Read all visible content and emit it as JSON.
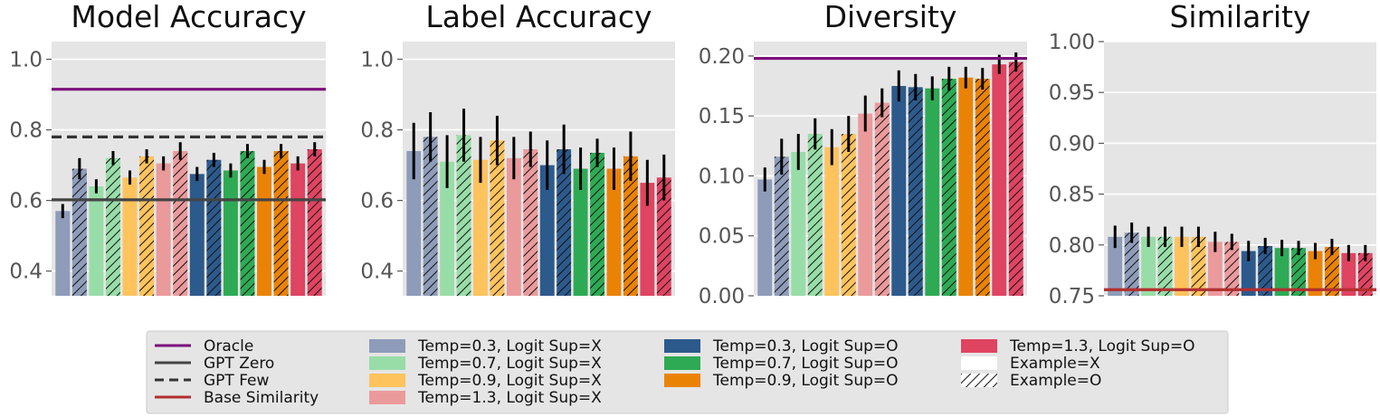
{
  "series_styles": [
    {
      "name": "Temp=0.3, Logit Sup=X",
      "color": "#8e9cba",
      "hatch": false
    },
    {
      "name": "Temp=0.3, Logit Sup=X",
      "color": "#8e9cba",
      "hatch": true
    },
    {
      "name": "Temp=0.7, Logit Sup=X",
      "color": "#98dda8",
      "hatch": false
    },
    {
      "name": "Temp=0.7, Logit Sup=X",
      "color": "#98dda8",
      "hatch": true
    },
    {
      "name": "Temp=0.9, Logit Sup=X",
      "color": "#fec35c",
      "hatch": false
    },
    {
      "name": "Temp=0.9, Logit Sup=X",
      "color": "#fec35c",
      "hatch": true
    },
    {
      "name": "Temp=1.3, Logit Sup=X",
      "color": "#eb9a9c",
      "hatch": false
    },
    {
      "name": "Temp=1.3, Logit Sup=X",
      "color": "#eb9a9c",
      "hatch": true
    },
    {
      "name": "Temp=0.3, Logit Sup=O",
      "color": "#2d5a8c",
      "hatch": false
    },
    {
      "name": "Temp=0.3, Logit Sup=O",
      "color": "#2d5a8c",
      "hatch": true
    },
    {
      "name": "Temp=0.7, Logit Sup=O",
      "color": "#2eaa55",
      "hatch": false
    },
    {
      "name": "Temp=0.7, Logit Sup=O",
      "color": "#2eaa55",
      "hatch": true
    },
    {
      "name": "Temp=0.9, Logit Sup=O",
      "color": "#ea8305",
      "hatch": false
    },
    {
      "name": "Temp=0.9, Logit Sup=O",
      "color": "#ea8305",
      "hatch": true
    },
    {
      "name": "Temp=1.3, Logit Sup=O",
      "color": "#df4461",
      "hatch": false
    },
    {
      "name": "Temp=1.3, Logit Sup=O",
      "color": "#df4461",
      "hatch": true
    }
  ],
  "chart_data": [
    {
      "type": "bar",
      "title": "Model Accuracy",
      "ylim": [
        0.33,
        1.05
      ],
      "yticks": [
        0.4,
        0.6,
        0.8,
        1.0
      ],
      "ytick_labels": [
        "0.4",
        "0.6",
        "0.8",
        "1.0"
      ],
      "values": [
        0.57,
        0.69,
        0.64,
        0.72,
        0.665,
        0.725,
        0.705,
        0.74,
        0.675,
        0.715,
        0.685,
        0.74,
        0.695,
        0.74,
        0.705,
        0.745
      ],
      "errors": [
        0.02,
        0.03,
        0.02,
        0.02,
        0.02,
        0.02,
        0.02,
        0.025,
        0.02,
        0.02,
        0.02,
        0.02,
        0.02,
        0.02,
        0.02,
        0.02
      ],
      "hlines": [
        {
          "name": "Oracle",
          "y": 0.915,
          "color": "#7b0d7b",
          "dash": false
        },
        {
          "name": "GPT Few",
          "y": 0.78,
          "color": "#333333",
          "dash": true
        },
        {
          "name": "GPT Zero",
          "y": 0.602,
          "color": "#444444",
          "dash": false
        }
      ]
    },
    {
      "type": "bar",
      "title": "Label Accuracy",
      "ylim": [
        0.33,
        1.05
      ],
      "yticks": [
        0.4,
        0.6,
        0.8,
        1.0
      ],
      "ytick_labels": [
        "0.4",
        "0.6",
        "0.8",
        "1.0"
      ],
      "values": [
        0.74,
        0.78,
        0.71,
        0.785,
        0.715,
        0.77,
        0.72,
        0.745,
        0.7,
        0.745,
        0.69,
        0.735,
        0.69,
        0.725,
        0.65,
        0.665
      ],
      "errors": [
        0.08,
        0.07,
        0.075,
        0.075,
        0.065,
        0.07,
        0.06,
        0.05,
        0.07,
        0.07,
        0.06,
        0.04,
        0.06,
        0.07,
        0.065,
        0.065
      ],
      "hlines": []
    },
    {
      "type": "bar",
      "title": "Diversity",
      "ylim": [
        0.0,
        0.212
      ],
      "yticks": [
        0.0,
        0.05,
        0.1,
        0.15,
        0.2
      ],
      "ytick_labels": [
        "0.00",
        "0.05",
        "0.10",
        "0.15",
        "0.20"
      ],
      "values": [
        0.097,
        0.116,
        0.12,
        0.135,
        0.124,
        0.135,
        0.152,
        0.161,
        0.175,
        0.174,
        0.173,
        0.181,
        0.182,
        0.181,
        0.193,
        0.195
      ],
      "errors": [
        0.01,
        0.015,
        0.015,
        0.013,
        0.015,
        0.015,
        0.015,
        0.012,
        0.013,
        0.011,
        0.01,
        0.01,
        0.009,
        0.009,
        0.008,
        0.008
      ],
      "hlines": [
        {
          "name": "Oracle",
          "y": 0.198,
          "color": "#7b0d7b",
          "dash": false
        }
      ]
    },
    {
      "type": "bar",
      "title": "Similarity",
      "ylim": [
        0.75,
        1.0
      ],
      "yticks": [
        0.75,
        0.8,
        0.85,
        0.9,
        0.95,
        1.0
      ],
      "ytick_labels": [
        "0.75",
        "0.80",
        "0.85",
        "0.90",
        "0.95",
        "1.00"
      ],
      "values": [
        0.808,
        0.812,
        0.808,
        0.808,
        0.808,
        0.808,
        0.803,
        0.803,
        0.794,
        0.799,
        0.797,
        0.797,
        0.794,
        0.798,
        0.792,
        0.792
      ],
      "errors": [
        0.011,
        0.01,
        0.01,
        0.01,
        0.01,
        0.01,
        0.01,
        0.008,
        0.01,
        0.008,
        0.008,
        0.007,
        0.008,
        0.008,
        0.008,
        0.008
      ],
      "hlines": [
        {
          "name": "Base Similarity",
          "y": 0.756,
          "color": "#b22f2f",
          "dash": false
        }
      ]
    }
  ],
  "legend": {
    "col1": [
      {
        "type": "line",
        "label": "Oracle",
        "color": "#7b0d7b",
        "dash": false
      },
      {
        "type": "line",
        "label": "GPT Zero",
        "color": "#444444",
        "dash": false
      },
      {
        "type": "line",
        "label": "GPT Few",
        "color": "#333333",
        "dash": true
      },
      {
        "type": "line",
        "label": "Base Similarity",
        "color": "#b22f2f",
        "dash": false
      }
    ],
    "col2": [
      {
        "type": "patch",
        "label": "Temp=0.3, Logit Sup=X",
        "color": "#8e9cba"
      },
      {
        "type": "patch",
        "label": "Temp=0.7, Logit Sup=X",
        "color": "#98dda8"
      },
      {
        "type": "patch",
        "label": "Temp=0.9, Logit Sup=X",
        "color": "#fec35c"
      },
      {
        "type": "patch",
        "label": "Temp=1.3, Logit Sup=X",
        "color": "#eb9a9c"
      }
    ],
    "col3": [
      {
        "type": "patch",
        "label": "Temp=0.3, Logit Sup=O",
        "color": "#2d5a8c"
      },
      {
        "type": "patch",
        "label": "Temp=0.7, Logit Sup=O",
        "color": "#2eaa55"
      },
      {
        "type": "patch",
        "label": "Temp=0.9, Logit Sup=O",
        "color": "#ea8305"
      }
    ],
    "col4": [
      {
        "type": "patch",
        "label": "Temp=1.3, Logit Sup=O",
        "color": "#df4461"
      },
      {
        "type": "plain",
        "label": "Example=X",
        "color": "#ffffff"
      },
      {
        "type": "hatch",
        "label": "Example=O",
        "color": "#ffffff"
      }
    ]
  }
}
